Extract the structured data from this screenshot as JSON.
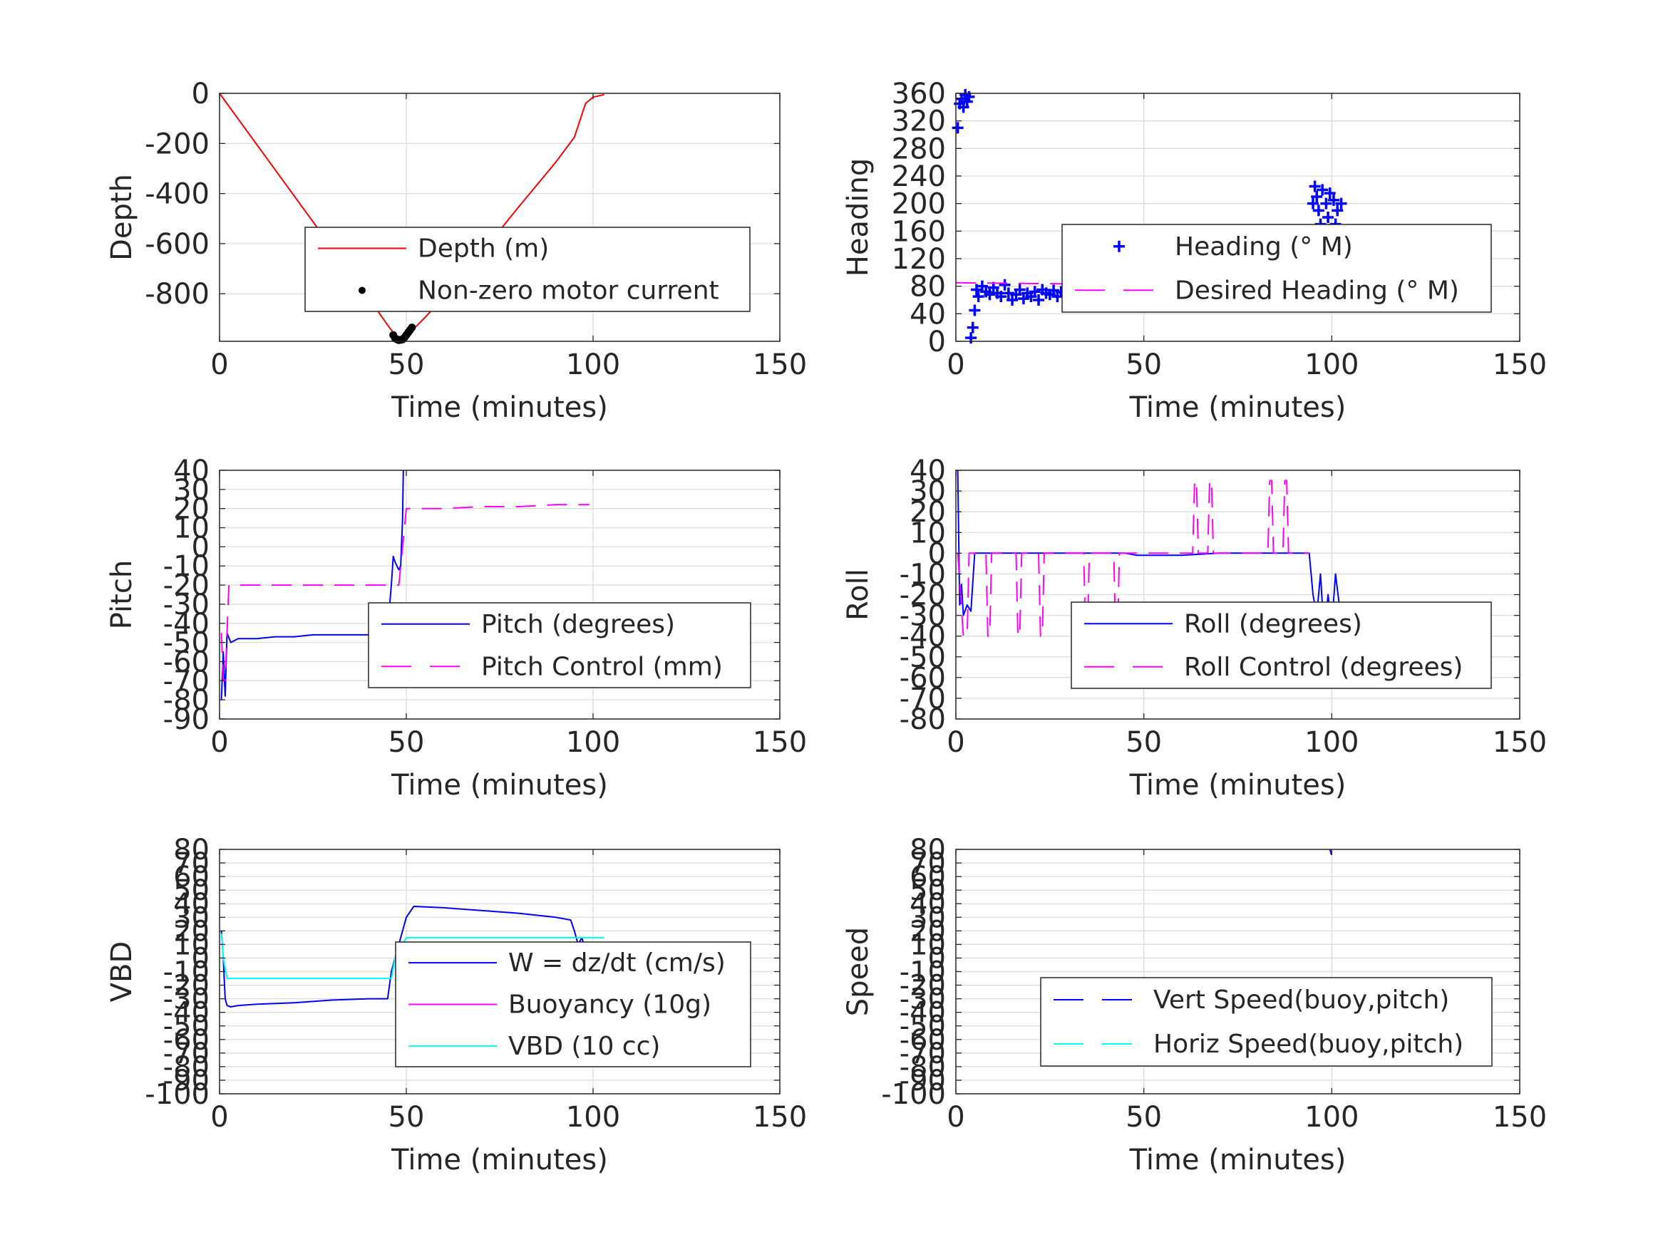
{
  "chart_data": [
    {
      "type": "line",
      "xlabel": "Time (minutes)",
      "ylabel": "Depth",
      "xlim": [
        0,
        150
      ],
      "ylim": [
        -990,
        0
      ],
      "xticks": [
        0,
        50,
        100,
        150
      ],
      "yticks": [
        0,
        -200,
        -400,
        -600,
        -800
      ],
      "grid": true,
      "legend": "center-right",
      "series": [
        {
          "name": "Depth (m)",
          "color": "#ff0000",
          "style": "solid",
          "x": [
            0,
            10,
            20,
            30,
            40,
            45,
            48,
            50,
            55,
            60,
            70,
            80,
            90,
            95,
            98,
            100,
            103
          ],
          "y": [
            0,
            -205,
            -410,
            -615,
            -820,
            -925,
            -985,
            -970,
            -895,
            -815,
            -640,
            -455,
            -275,
            -175,
            -40,
            -15,
            -5
          ]
        },
        {
          "name": "Non-zero motor current",
          "color": "#000000",
          "style": "dots",
          "x": [
            46.5,
            47,
            47.5,
            48,
            48.5,
            49,
            49.5,
            50,
            50.5,
            51,
            51.5
          ],
          "y": [
            -965,
            -978,
            -982,
            -985,
            -984,
            -982,
            -975,
            -965,
            -955,
            -945,
            -935
          ]
        }
      ]
    },
    {
      "type": "scatter",
      "xlabel": "Time (minutes)",
      "ylabel": "Heading",
      "xlim": [
        0,
        150
      ],
      "ylim": [
        0,
        360
      ],
      "xticks": [
        0,
        50,
        100,
        150
      ],
      "yticks": [
        0,
        40,
        80,
        120,
        160,
        200,
        240,
        280,
        320,
        360
      ],
      "grid": true,
      "legend": "center-right",
      "series": [
        {
          "name": "Heading (° M)",
          "color": "#0000ff",
          "style": "plus",
          "x": [
            0.5,
            1,
            1.5,
            2,
            2.5,
            3,
            3.5,
            4,
            4.5,
            5,
            5.5,
            6,
            7,
            8,
            9,
            10,
            11,
            12,
            13,
            14,
            15,
            16,
            17,
            18,
            19,
            20,
            21,
            22,
            23,
            24,
            25,
            26,
            27,
            28,
            29,
            30,
            31,
            32,
            33,
            34,
            35,
            36,
            37,
            38,
            39,
            40,
            41,
            42,
            43,
            44,
            45,
            46,
            47,
            48,
            49,
            50,
            52,
            54,
            56,
            58,
            60,
            62,
            64,
            66,
            68,
            70,
            72,
            74,
            76,
            78,
            80,
            82,
            84,
            86,
            88,
            90,
            92,
            93,
            94,
            95,
            95.5,
            96,
            96.5,
            97,
            97.5,
            98,
            98.5,
            99,
            99.5,
            100,
            100.5,
            101,
            101.5,
            102,
            102.5
          ],
          "y": [
            310,
            345,
            352,
            340,
            358,
            348,
            355,
            5,
            20,
            45,
            75,
            65,
            80,
            72,
            68,
            78,
            70,
            65,
            82,
            70,
            60,
            68,
            75,
            62,
            70,
            65,
            72,
            60,
            75,
            70,
            68,
            74,
            65,
            72,
            70,
            62,
            58,
            65,
            70,
            55,
            60,
            52,
            68,
            72,
            65,
            70,
            62,
            58,
            66,
            60,
            75,
            80,
            82,
            88,
            92,
            85,
            80,
            78,
            75,
            72,
            70,
            68,
            72,
            70,
            66,
            70,
            72,
            68,
            70,
            66,
            70,
            72,
            68,
            70,
            66,
            72,
            80,
            100,
            150,
            200,
            225,
            210,
            190,
            170,
            220,
            160,
            200,
            180,
            215,
            150,
            205,
            170,
            190,
            160,
            200
          ]
        },
        {
          "name": "Desired Heading (° M)",
          "color": "#ff00ff",
          "style": "dashed",
          "x": [
            0,
            94
          ],
          "y": [
            85,
            80
          ]
        }
      ]
    },
    {
      "type": "line",
      "xlabel": "Time (minutes)",
      "ylabel": "Pitch",
      "xlim": [
        0,
        150
      ],
      "ylim": [
        -90,
        40
      ],
      "xticks": [
        0,
        50,
        100,
        150
      ],
      "yticks": [
        40,
        30,
        20,
        10,
        0,
        -10,
        -20,
        -30,
        -40,
        -50,
        -60,
        -70,
        -80,
        -90
      ],
      "grid": true,
      "legend": "center-right",
      "series": [
        {
          "name": "Pitch (degrees)",
          "color": "#0000ff",
          "style": "solid",
          "x": [
            0.5,
            1,
            1.5,
            2,
            3,
            5,
            10,
            15,
            20,
            25,
            30,
            35,
            40,
            44,
            45,
            46,
            46.5,
            47,
            48,
            48.5,
            49,
            49.2
          ],
          "y": [
            -80,
            -55,
            -78,
            -45,
            -50,
            -48,
            -48,
            -47,
            -47,
            -46,
            -46,
            -46,
            -46,
            -46,
            -43,
            -20,
            -5,
            -8,
            -12,
            -10,
            15,
            40
          ]
        },
        {
          "name": "Pitch Control (mm)",
          "color": "#ff00ff",
          "style": "dashed",
          "x": [
            0.5,
            1,
            1.5,
            2,
            2.5,
            10,
            20,
            30,
            40,
            46,
            48,
            49,
            50,
            60,
            70,
            80,
            90,
            99
          ],
          "y": [
            -45,
            -70,
            -70,
            -45,
            -20,
            -20,
            -20,
            -20,
            -20,
            -20,
            -20,
            0,
            20,
            20,
            21,
            21,
            22,
            22
          ]
        }
      ]
    },
    {
      "type": "line",
      "xlabel": "Time (minutes)",
      "ylabel": "Roll",
      "xlim": [
        0,
        150
      ],
      "ylim": [
        -80,
        40
      ],
      "xticks": [
        0,
        50,
        100,
        150
      ],
      "yticks": [
        40,
        30,
        20,
        10,
        0,
        -10,
        -20,
        -30,
        -40,
        -50,
        -60,
        -70,
        -80
      ],
      "grid": true,
      "legend": "center-right",
      "series": [
        {
          "name": "Roll (degrees)",
          "color": "#0000ff",
          "style": "solid",
          "x": [
            0.5,
            1,
            1.5,
            2,
            3,
            4,
            5,
            6,
            10,
            20,
            30,
            40,
            45,
            48,
            50,
            60,
            70,
            80,
            90,
            94,
            95,
            96,
            97,
            98,
            99,
            100,
            101,
            102,
            103
          ],
          "y": [
            40,
            -25,
            -15,
            -30,
            -25,
            -28,
            0,
            0,
            0,
            0,
            0,
            0,
            0,
            -1,
            -1,
            -1,
            0,
            0,
            0,
            0,
            -20,
            -30,
            -10,
            -40,
            -20,
            -35,
            -10,
            -25,
            -28
          ]
        },
        {
          "name": "Roll Control (degrees)",
          "color": "#ff00ff",
          "style": "dashed",
          "x": [
            0.5,
            2,
            3,
            3.5,
            4,
            8,
            8.5,
            9,
            9.5,
            16,
            16.5,
            17,
            17.5,
            22,
            22.5,
            23,
            23.5,
            34,
            34.5,
            35,
            35.5,
            42,
            42.5,
            43,
            43.5,
            63,
            63.5,
            64,
            64.5,
            67,
            67.5,
            68,
            68.5,
            83,
            83.5,
            84,
            84.5,
            87,
            87.5,
            88,
            88.5,
            94
          ],
          "y": [
            0,
            -40,
            -40,
            0,
            0,
            0,
            -40,
            -40,
            0,
            0,
            -40,
            -40,
            0,
            0,
            -40,
            -40,
            0,
            0,
            -40,
            -40,
            0,
            0,
            -40,
            -40,
            0,
            0,
            35,
            35,
            0,
            0,
            35,
            35,
            0,
            0,
            35,
            35,
            0,
            0,
            35,
            35,
            0,
            0
          ]
        }
      ]
    },
    {
      "type": "line",
      "xlabel": "Time (minutes)",
      "ylabel": "VBD",
      "xlim": [
        0,
        150
      ],
      "ylim": [
        -100,
        80
      ],
      "xticks": [
        0,
        50,
        100,
        150
      ],
      "yticks": [
        80,
        70,
        60,
        50,
        40,
        30,
        20,
        10,
        0,
        -10,
        -20,
        -30,
        -40,
        -50,
        -60,
        -70,
        -80,
        -90,
        -100
      ],
      "grid": true,
      "legend": "center-right",
      "series": [
        {
          "name": "W = dz/dt (cm/s)",
          "color": "#0000ff",
          "style": "solid",
          "x": [
            0.5,
            1,
            1.5,
            2,
            3,
            5,
            10,
            20,
            30,
            40,
            45,
            46,
            47,
            48,
            50,
            52,
            60,
            70,
            80,
            90,
            94,
            95,
            96,
            97,
            98,
            99,
            100,
            101,
            102,
            103
          ],
          "y": [
            20,
            0,
            -30,
            -35,
            -36,
            -35,
            -34,
            -33,
            -31,
            -30,
            -30,
            -10,
            0,
            10,
            30,
            38,
            37,
            35,
            33,
            30,
            28,
            20,
            10,
            15,
            5,
            10,
            3,
            8,
            2,
            5
          ]
        },
        {
          "name": "Buoyancy (10g)",
          "color": "#ff00ff",
          "style": "solid",
          "x": [],
          "y": []
        },
        {
          "name": "VBD (10 cc)",
          "color": "#00ffff",
          "style": "solid",
          "x": [
            0.5,
            1,
            2,
            10,
            20,
            30,
            40,
            46,
            47,
            48,
            50,
            60,
            70,
            80,
            90,
            100,
            103
          ],
          "y": [
            18,
            0,
            -15,
            -15,
            -15,
            -15,
            -15,
            -15,
            0,
            5,
            15,
            15,
            15,
            15,
            15,
            15,
            15
          ]
        }
      ]
    },
    {
      "type": "line",
      "xlabel": "Time (minutes)",
      "ylabel": "Speed",
      "xlim": [
        0,
        150
      ],
      "ylim": [
        -100,
        80
      ],
      "xticks": [
        0,
        50,
        100,
        150
      ],
      "yticks": [
        80,
        70,
        60,
        50,
        40,
        30,
        20,
        10,
        0,
        -10,
        -20,
        -30,
        -40,
        -50,
        -60,
        -70,
        -80,
        -90,
        -100
      ],
      "grid": true,
      "legend": "center-right",
      "series": [
        {
          "name": "Vert Speed(buoy,pitch)",
          "color": "#0000ff",
          "style": "dashed",
          "x": [
            99.5,
            99.7,
            99.9
          ],
          "y": [
            80,
            78,
            76
          ]
        },
        {
          "name": "Horiz Speed(buoy,pitch)",
          "color": "#00ffff",
          "style": "dashed",
          "x": [],
          "y": []
        }
      ]
    }
  ]
}
